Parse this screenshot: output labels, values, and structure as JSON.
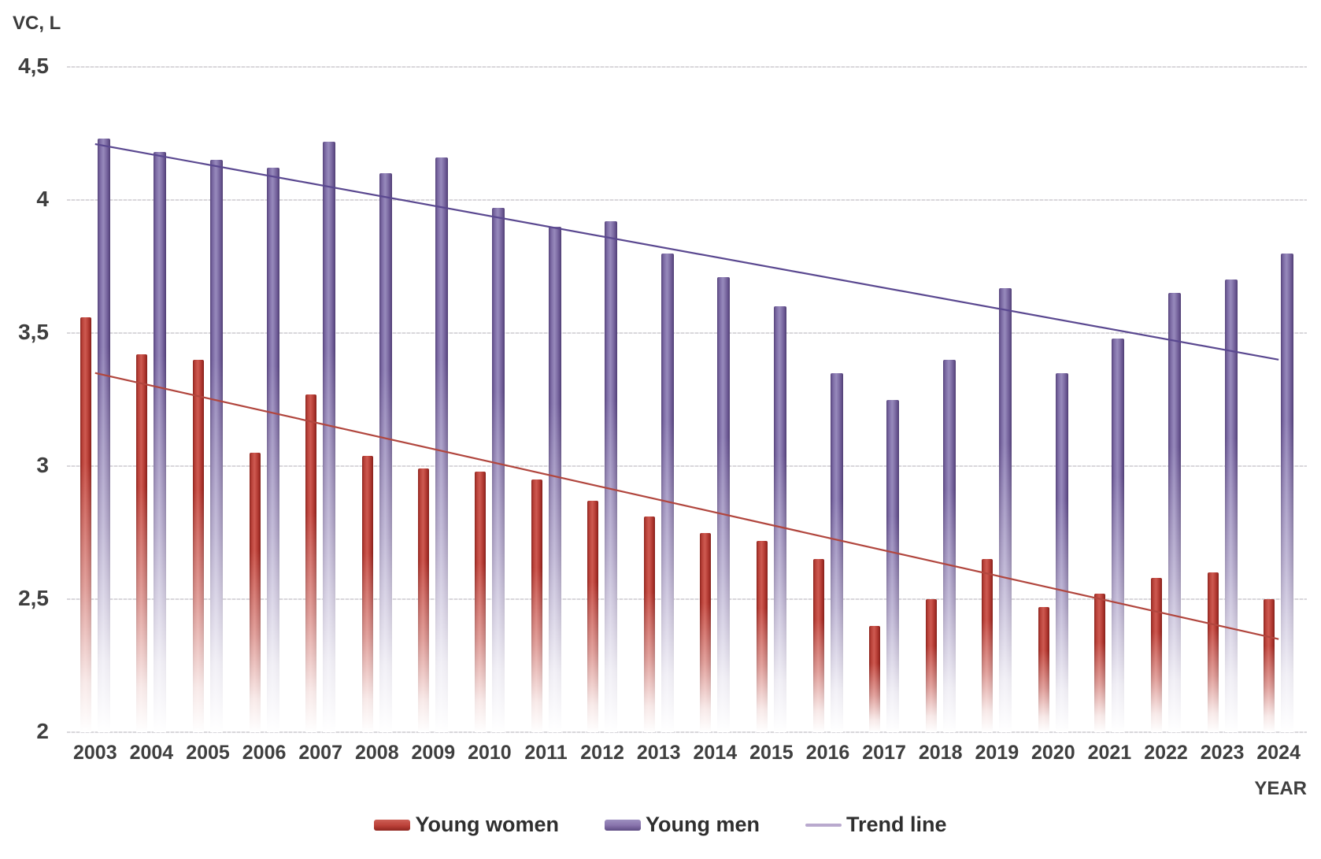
{
  "labels": {
    "y_axis_title": "VC, L",
    "x_axis_title": "YEAR"
  },
  "legend": {
    "women": "Young women",
    "men": "Young men",
    "trend": "Trend line"
  },
  "colors": {
    "women_bar": "#b23a31",
    "men_bar": "#7d68a6",
    "women_trend_line": "#b1463e",
    "men_trend_line": "#5a4890",
    "gridline": "#dbd9dd",
    "text": "#3f3f3f"
  },
  "chart_data": {
    "type": "bar",
    "title": "VC, L",
    "ylabel": "VC, L",
    "xlabel": "YEAR",
    "categories": [
      "2003",
      "2004",
      "2005",
      "2006",
      "2007",
      "2008",
      "2009",
      "2010",
      "2011",
      "2012",
      "2013",
      "2014",
      "2015",
      "2016",
      "2017",
      "2018",
      "2019",
      "2020",
      "2021",
      "2022",
      "2023",
      "2024"
    ],
    "series": [
      {
        "name": "Young women",
        "color": "#b23a31",
        "values": [
          3.56,
          3.42,
          3.4,
          3.05,
          3.27,
          3.04,
          2.99,
          2.98,
          2.95,
          2.87,
          2.81,
          2.75,
          2.72,
          2.65,
          2.4,
          2.5,
          2.65,
          2.47,
          2.52,
          2.58,
          2.6,
          2.5
        ]
      },
      {
        "name": "Young men",
        "color": "#7d68a6",
        "values": [
          4.23,
          4.18,
          4.15,
          4.12,
          4.22,
          4.1,
          4.16,
          3.97,
          3.9,
          3.92,
          3.8,
          3.71,
          3.6,
          3.35,
          3.25,
          3.4,
          3.67,
          3.35,
          3.48,
          3.65,
          3.7,
          3.8
        ]
      }
    ],
    "trend_lines": [
      {
        "name": "Trend line (Young men)",
        "color": "#5a4890",
        "start_value": 4.21,
        "end_value": 3.4
      },
      {
        "name": "Trend line (Young women)",
        "color": "#b1463e",
        "start_value": 3.35,
        "end_value": 2.35
      }
    ],
    "ylim": [
      2,
      4.5
    ],
    "yticks": [
      4.5,
      4,
      3.5,
      3,
      2.5,
      2
    ],
    "ytick_labels": [
      "4,5",
      "4",
      "3,5",
      "3",
      "2,5",
      "2"
    ],
    "grid": true,
    "legend": [
      "Young women",
      "Young men",
      "Trend line"
    ],
    "legend_position": "bottom"
  }
}
